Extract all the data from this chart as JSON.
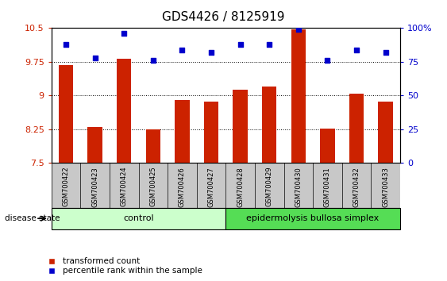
{
  "title": "GDS4426 / 8125919",
  "samples": [
    "GSM700422",
    "GSM700423",
    "GSM700424",
    "GSM700425",
    "GSM700426",
    "GSM700427",
    "GSM700428",
    "GSM700429",
    "GSM700430",
    "GSM700431",
    "GSM700432",
    "GSM700433"
  ],
  "bar_values": [
    9.68,
    8.3,
    9.82,
    8.25,
    8.9,
    8.87,
    9.13,
    9.2,
    10.47,
    8.26,
    9.05,
    8.87
  ],
  "scatter_pct": [
    88,
    78,
    96,
    76,
    84,
    82,
    88,
    88,
    99,
    76,
    84,
    82
  ],
  "bar_color": "#cc2200",
  "scatter_color": "#0000cc",
  "ylim_left": [
    7.5,
    10.5
  ],
  "ylim_right": [
    0,
    100
  ],
  "yticks_left": [
    7.5,
    8.25,
    9.0,
    9.75,
    10.5
  ],
  "ytick_labels_left": [
    "7.5",
    "8.25",
    "9",
    "9.75",
    "10.5"
  ],
  "yticks_right": [
    0,
    25,
    50,
    75,
    100
  ],
  "ytick_labels_right": [
    "0",
    "25",
    "50",
    "75",
    "100%"
  ],
  "control_samples": 6,
  "control_label": "control",
  "disease_label": "epidermolysis bullosa simplex",
  "disease_state_label": "disease state",
  "legend_bar": "transformed count",
  "legend_scatter": "percentile rank within the sample",
  "control_color": "#ccffcc",
  "disease_color": "#55dd55",
  "bar_color_hex": "#cc2200",
  "scatter_marker": "s",
  "label_bg_color": "#c8c8c8",
  "title_fontsize": 11
}
